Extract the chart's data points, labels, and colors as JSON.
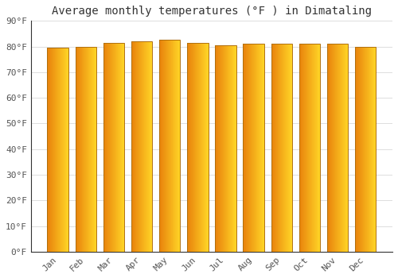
{
  "title": "Average monthly temperatures (°F ) in Dimataling",
  "months": [
    "Jan",
    "Feb",
    "Mar",
    "Apr",
    "May",
    "Jun",
    "Jul",
    "Aug",
    "Sep",
    "Oct",
    "Nov",
    "Dec"
  ],
  "values": [
    79.5,
    80.0,
    81.5,
    82.0,
    82.5,
    81.5,
    80.5,
    81.0,
    81.0,
    81.0,
    81.0,
    80.0
  ],
  "ylim": [
    0,
    90
  ],
  "yticks": [
    0,
    10,
    20,
    30,
    40,
    50,
    60,
    70,
    80,
    90
  ],
  "ytick_labels": [
    "0°F",
    "10°F",
    "20°F",
    "30°F",
    "40°F",
    "50°F",
    "60°F",
    "70°F",
    "80°F",
    "90°F"
  ],
  "bar_color_left": "#E8820C",
  "bar_color_right": "#FFD426",
  "bar_edge_color": "#B07010",
  "background_color": "#FFFFFF",
  "grid_color": "#DDDDDD",
  "title_fontsize": 10,
  "tick_fontsize": 8,
  "font_family": "monospace"
}
